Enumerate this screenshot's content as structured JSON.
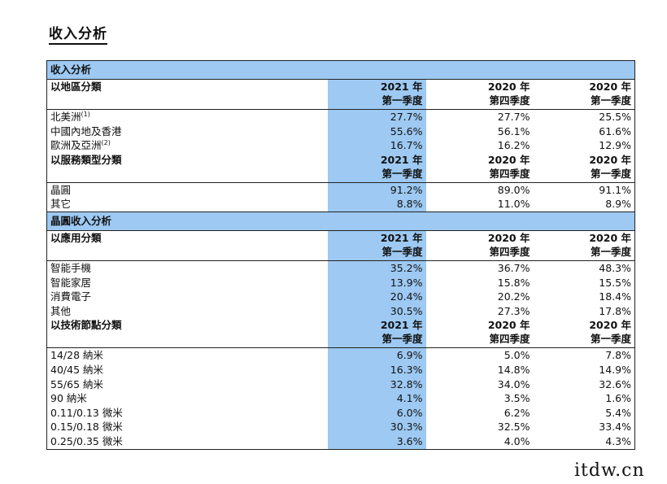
{
  "page_title": "收入分析",
  "sections": [
    {
      "title": "收入分析",
      "groups": [
        {
          "header": {
            "label": "以地區分類",
            "cols": [
              [
                "2021 年",
                "第一季度"
              ],
              [
                "2020 年",
                "第四季度"
              ],
              [
                "2020 年",
                "第一季度"
              ]
            ]
          },
          "rows": [
            {
              "label": "北美洲",
              "note": "(1)",
              "values": [
                "27.7%",
                "27.7%",
                "25.5%"
              ]
            },
            {
              "label": "中國內地及香港",
              "note": "",
              "values": [
                "55.6%",
                "56.1%",
                "61.6%"
              ]
            },
            {
              "label": "歐洲及亞洲",
              "note": "(2)",
              "values": [
                "16.7%",
                "16.2%",
                "12.9%"
              ]
            }
          ]
        },
        {
          "header": {
            "label": "以服務類型分類",
            "cols": [
              [
                "2021 年",
                "第一季度"
              ],
              [
                "2020 年",
                "第四季度"
              ],
              [
                "2020 年",
                "第一季度"
              ]
            ]
          },
          "rows": [
            {
              "label": "晶圓",
              "note": "",
              "values": [
                "91.2%",
                "89.0%",
                "91.1%"
              ]
            },
            {
              "label": "其它",
              "note": "",
              "values": [
                "8.8%",
                "11.0%",
                "8.9%"
              ]
            }
          ]
        }
      ]
    },
    {
      "title": "晶圓收入分析",
      "groups": [
        {
          "header": {
            "label": "以應用分類",
            "cols": [
              [
                "2021 年",
                "第一季度"
              ],
              [
                "2020 年",
                "第四季度"
              ],
              [
                "2020 年",
                "第一季度"
              ]
            ]
          },
          "rows": [
            {
              "label": "智能手機",
              "note": "",
              "values": [
                "35.2%",
                "36.7%",
                "48.3%"
              ]
            },
            {
              "label": "智能家居",
              "note": "",
              "values": [
                "13.9%",
                "15.8%",
                "15.5%"
              ]
            },
            {
              "label": "消費電子",
              "note": "",
              "values": [
                "20.4%",
                "20.2%",
                "18.4%"
              ]
            },
            {
              "label": "其他",
              "note": "",
              "values": [
                "30.5%",
                "27.3%",
                "17.8%"
              ]
            }
          ]
        },
        {
          "header": {
            "label": "以技術節點分類",
            "cols": [
              [
                "2021 年",
                "第一季度"
              ],
              [
                "2020 年",
                "第四季度"
              ],
              [
                "2020 年",
                "第一季度"
              ]
            ]
          },
          "rows": [
            {
              "label": "14/28 納米",
              "note": "",
              "values": [
                "6.9%",
                "5.0%",
                "7.8%"
              ]
            },
            {
              "label": "40/45 納米",
              "note": "",
              "values": [
                "16.3%",
                "14.8%",
                "14.9%"
              ]
            },
            {
              "label": "55/65 納米",
              "note": "",
              "values": [
                "32.8%",
                "34.0%",
                "32.6%"
              ]
            },
            {
              "label": "90 納米",
              "note": "",
              "values": [
                "4.1%",
                "3.5%",
                "1.6%"
              ]
            },
            {
              "label": "0.11/0.13 微米",
              "note": "",
              "values": [
                "6.0%",
                "6.2%",
                "5.4%"
              ]
            },
            {
              "label": "0.15/0.18 微米",
              "note": "",
              "values": [
                "30.3%",
                "32.5%",
                "33.4%"
              ]
            },
            {
              "label": "0.25/0.35 微米",
              "note": "",
              "values": [
                "3.6%",
                "4.0%",
                "4.3%"
              ]
            }
          ]
        }
      ]
    }
  ],
  "watermark": "itdw.cn",
  "colors": {
    "highlight": "#9dc9f2",
    "border": "#222222"
  }
}
